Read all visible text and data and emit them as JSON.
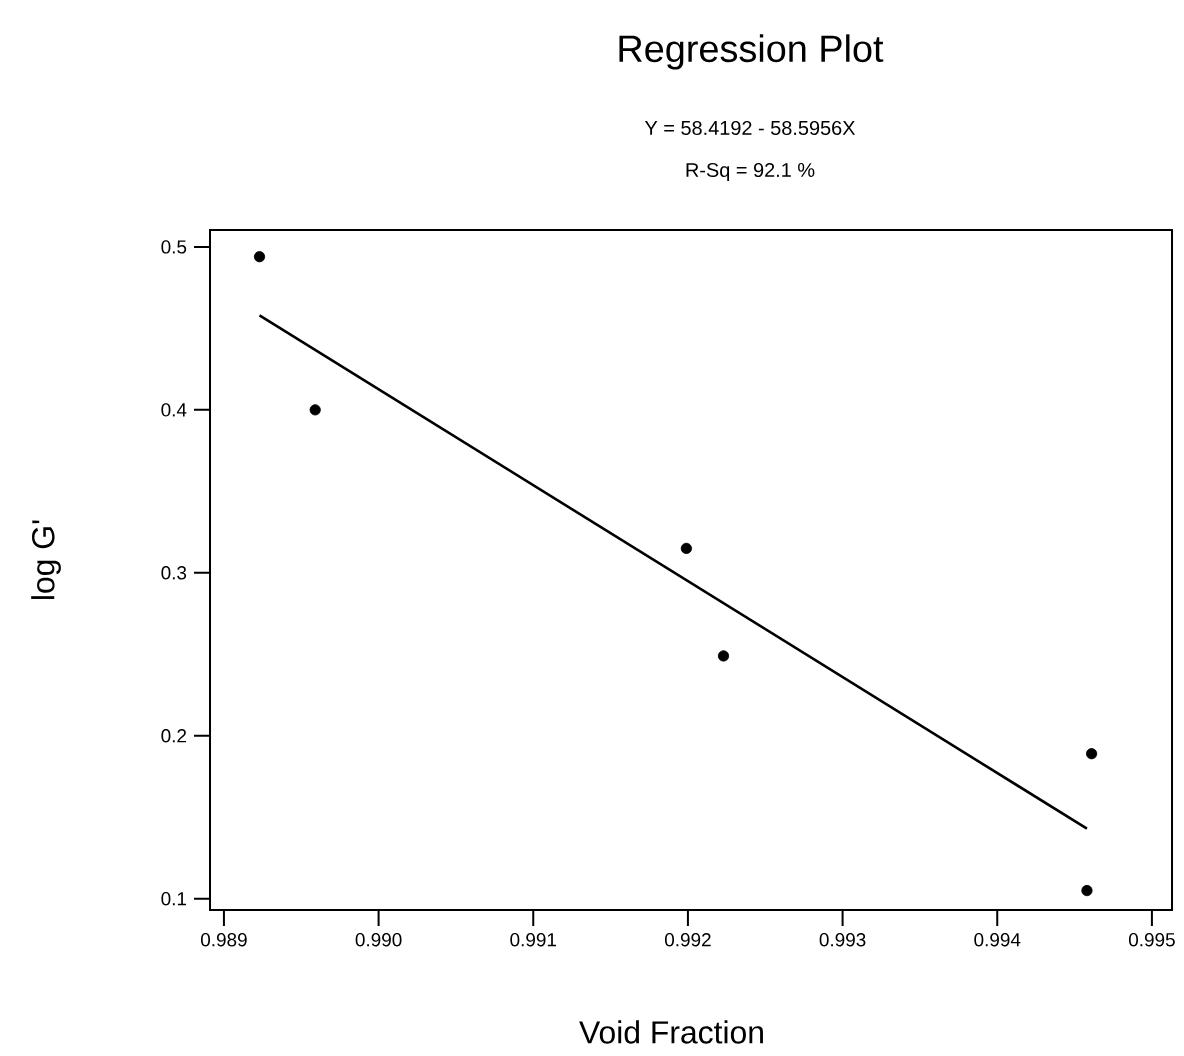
{
  "chart_data": {
    "type": "scatter",
    "title": "Regression Plot",
    "subtitle": "Y = 58.4192 - 58.5956X",
    "annotations": [
      "R-Sq = 92.1 %"
    ],
    "xlabel": "Void Fraction",
    "ylabel": "log G'",
    "series": [
      {
        "color": "#000000",
        "marker": "circle",
        "x": [
          0.98923,
          0.98959,
          0.99199,
          0.99223,
          0.99461,
          0.99458
        ],
        "values": [
          0.494,
          0.4,
          0.315,
          0.249,
          0.189,
          0.105
        ]
      },
      {
        "type": "line",
        "color": "#000000",
        "marker": "none",
        "line_style": "solid",
        "x": [
          0.98923,
          0.99458
        ],
        "values": [
          0.458,
          0.143
        ]
      }
    ],
    "xlim": [
      0.98891,
      0.99513
    ],
    "ylim": [
      0.0931,
      0.5104
    ],
    "xticks": [
      0.989,
      {
        "value": 0.99,
        "label": "0.990"
      },
      0.991,
      0.992,
      0.993,
      0.994,
      0.995
    ],
    "yticks": [
      0.1,
      0.2,
      0.3,
      0.4,
      0.5
    ]
  }
}
